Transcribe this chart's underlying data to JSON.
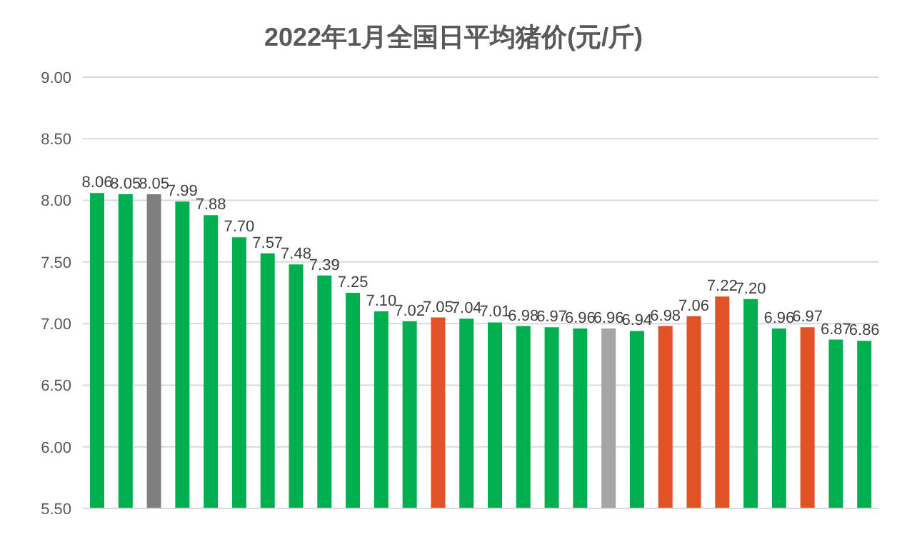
{
  "chart_data": {
    "type": "bar",
    "title": "2022年1月全国日平均猪价(元/斤)",
    "categories": [
      null,
      null,
      null,
      null,
      null,
      null,
      null,
      null,
      null,
      null,
      null,
      null,
      null,
      null,
      null,
      null,
      null,
      null,
      null,
      null,
      null,
      null,
      null,
      null,
      null,
      null,
      null,
      null
    ],
    "values": [
      8.06,
      8.05,
      8.05,
      7.99,
      7.88,
      7.7,
      7.57,
      7.48,
      7.39,
      7.25,
      7.1,
      7.02,
      7.05,
      7.04,
      7.01,
      6.98,
      6.97,
      6.96,
      6.96,
      6.94,
      6.98,
      7.06,
      7.22,
      7.2,
      6.96,
      6.97,
      6.87,
      6.86
    ],
    "colors": [
      "#00b050",
      "#00b050",
      "#7f7f7f",
      "#00b050",
      "#00b050",
      "#00b050",
      "#00b050",
      "#00b050",
      "#00b050",
      "#00b050",
      "#00b050",
      "#00b050",
      "#e15326",
      "#00b050",
      "#00b050",
      "#00b050",
      "#00b050",
      "#00b050",
      "#a5a5a5",
      "#00b050",
      "#e15326",
      "#e15326",
      "#e15326",
      "#00b050",
      "#00b050",
      "#e15326",
      "#00b050",
      "#00b050"
    ],
    "value_labels": [
      "8.06",
      "8.05",
      "8.05",
      "7.99",
      "7.88",
      "7.70",
      "7.57",
      "7.48",
      "7.39",
      "7.25",
      "7.10",
      "7.02",
      "7.05",
      "7.04",
      "7.01",
      "6.98",
      "6.97",
      "6.96",
      "6.96",
      "6.94",
      "6.98",
      "7.06",
      "7.22",
      "7.20",
      "6.96",
      "6.97",
      "6.87",
      "6.86"
    ],
    "ylim": [
      5.5,
      9.0
    ],
    "yticks": [
      {
        "value": 5.5,
        "label": "5.50"
      },
      {
        "value": 6.0,
        "label": "6.00"
      },
      {
        "value": 6.5,
        "label": "6.50"
      },
      {
        "value": 7.0,
        "label": "7.00"
      },
      {
        "value": 7.5,
        "label": "7.50"
      },
      {
        "value": 8.0,
        "label": "8.00"
      },
      {
        "value": 8.5,
        "label": "8.50"
      },
      {
        "value": 9.0,
        "label": "9.00"
      }
    ],
    "grid": "y"
  }
}
